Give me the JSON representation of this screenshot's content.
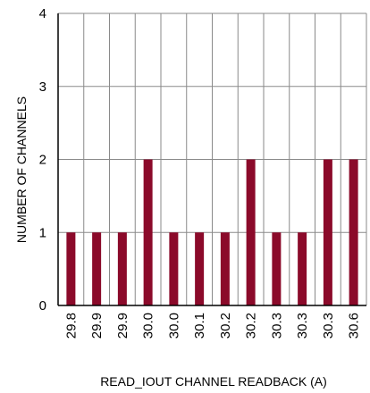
{
  "chart_data": {
    "type": "bar",
    "xlabel": "READ_IOUT CHANNEL READBACK (A)",
    "ylabel": "NUMBER OF CHANNELS",
    "categories": [
      "29.8",
      "29.9",
      "29.9",
      "30.0",
      "30.0",
      "30.1",
      "30.2",
      "30.2",
      "30.3",
      "30.3",
      "30.3",
      "30.6"
    ],
    "values": [
      1,
      1,
      1,
      2,
      1,
      1,
      1,
      2,
      1,
      1,
      2,
      2
    ],
    "ylim": [
      0,
      4
    ],
    "yticks": [
      "0",
      "1",
      "2",
      "3",
      "4"
    ],
    "grid": true,
    "bar_color": "#8b0a2a",
    "grid_color": "#8a8a8a"
  }
}
